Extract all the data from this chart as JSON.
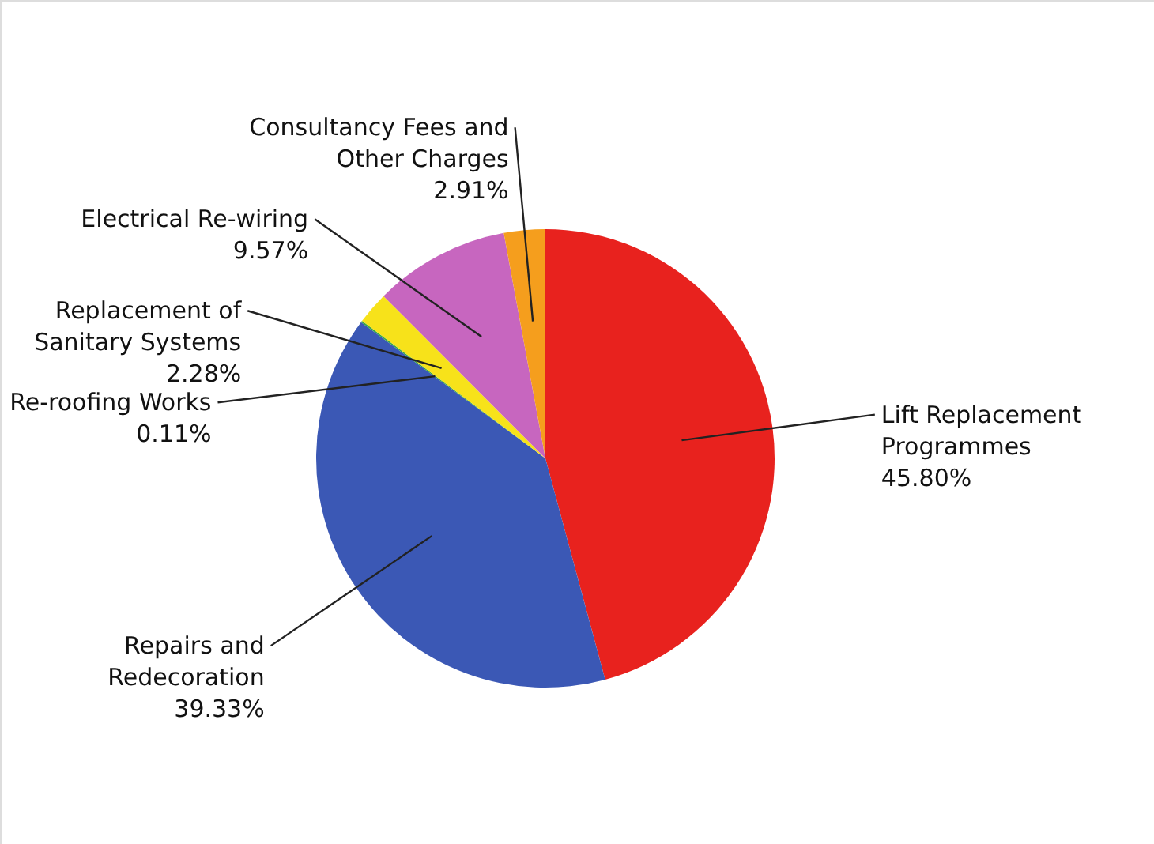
{
  "chart_data": {
    "type": "pie",
    "categories": [
      "Lift Replacement Programmes",
      "Repairs and Redecoration",
      "Re-roofing Works",
      "Replacement of Sanitary Systems",
      "Electrical Re-wiring",
      "Consultancy Fees and Other Charges"
    ],
    "values": [
      45.8,
      39.33,
      0.11,
      2.28,
      9.57,
      2.91
    ],
    "value_labels": [
      "45.80%",
      "39.33%",
      "0.11%",
      "2.28%",
      "9.57%",
      "2.91%"
    ],
    "colors": [
      "#e8221e",
      "#3b58b5",
      "#3aa64a",
      "#f7e21a",
      "#c766bf",
      "#f59e1d"
    ]
  }
}
